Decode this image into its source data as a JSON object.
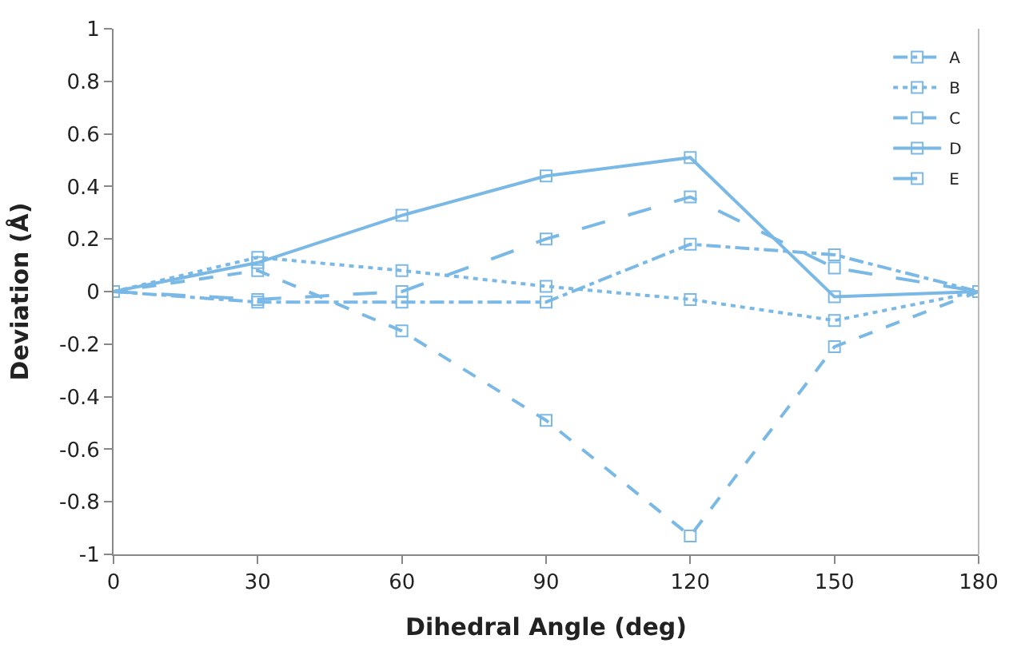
{
  "chart_data": {
    "type": "line",
    "xlabel": "Dihedral Angle (deg)",
    "ylabel": "Deviation (Å)",
    "x": [
      0,
      30,
      60,
      90,
      120,
      150,
      180
    ],
    "xlim": [
      0,
      180
    ],
    "xticks": [
      0,
      30,
      60,
      90,
      120,
      150,
      180
    ],
    "ylim": [
      -1,
      1
    ],
    "yticks": [
      -1,
      -0.8,
      -0.6,
      -0.4,
      -0.2,
      0,
      0.2,
      0.4,
      0.6,
      0.8,
      1
    ],
    "legend": "top right",
    "marker": "square",
    "series": [
      {
        "name": "A",
        "color": "#7ab8e6",
        "line_style": "dashdot",
        "values": [
          0,
          -0.04,
          -0.04,
          -0.04,
          0.18,
          0.14,
          0
        ]
      },
      {
        "name": "B",
        "color": "#7ab8e6",
        "line_style": "dotted",
        "values": [
          0,
          0.13,
          0.08,
          0.02,
          -0.03,
          -0.11,
          0
        ]
      },
      {
        "name": "C",
        "color": "#7ab8e6",
        "line_style": "dashed",
        "values": [
          0,
          0.08,
          -0.15,
          -0.49,
          -0.93,
          -0.21,
          0
        ]
      },
      {
        "name": "D",
        "color": "#7ab8e6",
        "line_style": "solid",
        "values": [
          0,
          0.11,
          0.29,
          0.44,
          0.51,
          -0.02,
          0
        ]
      },
      {
        "name": "E",
        "color": "#7ab8e6",
        "line_style": "longdash",
        "values": [
          0,
          -0.03,
          0.0,
          0.2,
          0.36,
          0.09,
          0
        ]
      }
    ]
  }
}
